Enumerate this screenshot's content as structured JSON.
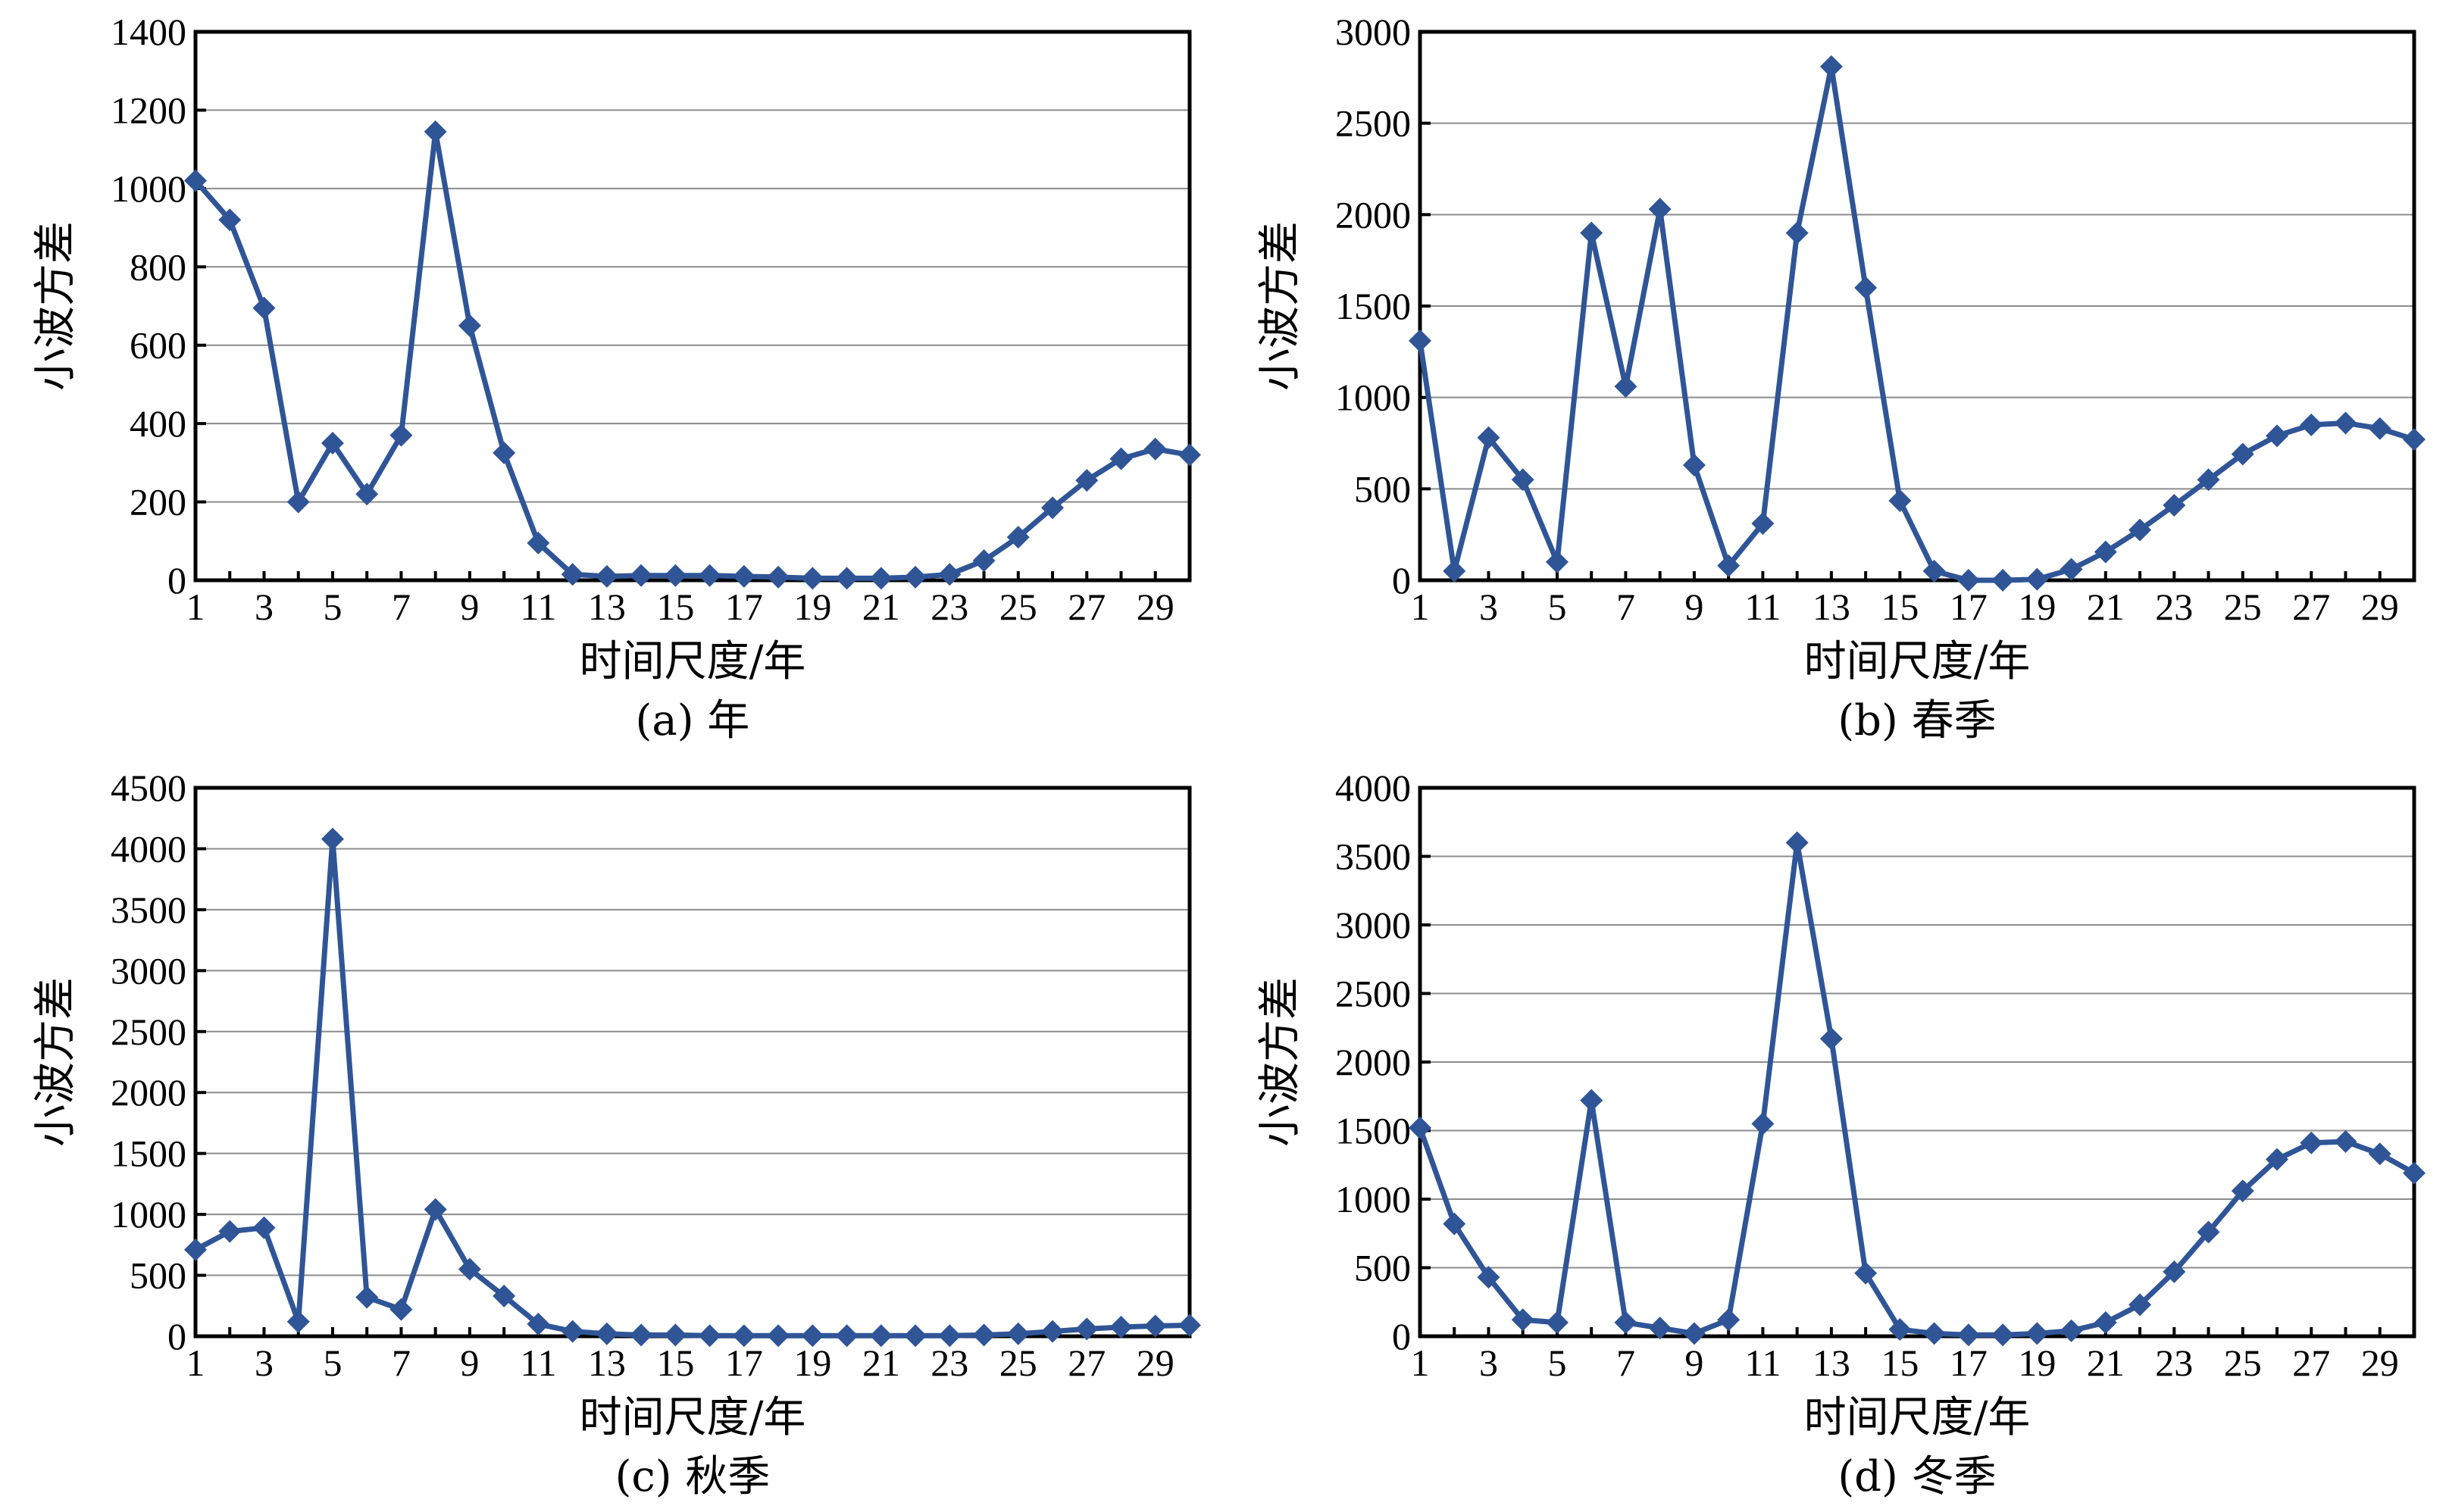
{
  "colors": {
    "series": "#2f5597",
    "grid": "#8c8c8c",
    "frame": "#000000"
  },
  "chart_data": [
    {
      "id": "a",
      "type": "line",
      "caption": "(a) 年",
      "xlabel": "时间尺度/年",
      "ylabel": "小波方差",
      "xlim": [
        1,
        30
      ],
      "ylim": [
        0,
        1400
      ],
      "yticks": [
        0,
        200,
        400,
        600,
        800,
        1000,
        1200,
        1400
      ],
      "xticks": [
        1,
        3,
        5,
        7,
        9,
        11,
        13,
        15,
        17,
        19,
        21,
        23,
        25,
        27,
        29
      ],
      "grid": "horizontal",
      "marker": "diamond",
      "x": [
        1,
        2,
        3,
        4,
        5,
        6,
        7,
        8,
        9,
        10,
        11,
        12,
        13,
        14,
        15,
        16,
        17,
        18,
        19,
        20,
        21,
        22,
        23,
        24,
        25,
        26,
        27,
        28,
        29,
        30
      ],
      "values": [
        1020,
        920,
        695,
        200,
        350,
        220,
        370,
        1145,
        650,
        325,
        95,
        15,
        10,
        12,
        12,
        12,
        10,
        8,
        5,
        5,
        5,
        8,
        15,
        50,
        110,
        185,
        255,
        310,
        335,
        320
      ]
    },
    {
      "id": "b",
      "type": "line",
      "caption": "(b) 春季",
      "xlabel": "时间尺度/年",
      "ylabel": "小波方差",
      "xlim": [
        1,
        30
      ],
      "ylim": [
        0,
        3000
      ],
      "yticks": [
        0,
        500,
        1000,
        1500,
        2000,
        2500,
        3000
      ],
      "xticks": [
        1,
        3,
        5,
        7,
        9,
        11,
        13,
        15,
        17,
        19,
        21,
        23,
        25,
        27,
        29
      ],
      "grid": "horizontal",
      "marker": "diamond",
      "x": [
        1,
        2,
        3,
        4,
        5,
        6,
        7,
        8,
        9,
        10,
        11,
        12,
        13,
        14,
        15,
        16,
        17,
        18,
        19,
        20,
        21,
        22,
        23,
        24,
        25,
        26,
        27,
        28,
        29,
        30
      ],
      "values": [
        1310,
        50,
        780,
        550,
        100,
        1900,
        1060,
        2030,
        630,
        80,
        310,
        1900,
        2810,
        1600,
        435,
        50,
        0,
        0,
        5,
        60,
        155,
        275,
        410,
        550,
        690,
        790,
        850,
        860,
        830,
        770
      ]
    },
    {
      "id": "c",
      "type": "line",
      "caption": "(c) 秋季",
      "xlabel": "时间尺度/年",
      "ylabel": "小波方差",
      "xlim": [
        1,
        30
      ],
      "ylim": [
        0,
        4500
      ],
      "yticks": [
        0,
        500,
        1000,
        1500,
        2000,
        2500,
        3000,
        3500,
        4000,
        4500
      ],
      "xticks": [
        1,
        3,
        5,
        7,
        9,
        11,
        13,
        15,
        17,
        19,
        21,
        23,
        25,
        27,
        29
      ],
      "grid": "horizontal",
      "marker": "diamond",
      "x": [
        1,
        2,
        3,
        4,
        5,
        6,
        7,
        8,
        9,
        10,
        11,
        12,
        13,
        14,
        15,
        16,
        17,
        18,
        19,
        20,
        21,
        22,
        23,
        24,
        25,
        26,
        27,
        28,
        29,
        30
      ],
      "values": [
        710,
        860,
        890,
        120,
        4080,
        320,
        220,
        1040,
        550,
        330,
        100,
        40,
        20,
        10,
        10,
        5,
        5,
        5,
        5,
        5,
        5,
        5,
        5,
        10,
        20,
        40,
        60,
        75,
        85,
        90
      ]
    },
    {
      "id": "d",
      "type": "line",
      "caption": "(d) 冬季",
      "xlabel": "时间尺度/年",
      "ylabel": "小波方差",
      "xlim": [
        1,
        30
      ],
      "ylim": [
        0,
        4000
      ],
      "yticks": [
        0,
        500,
        1000,
        1500,
        2000,
        2500,
        3000,
        3500,
        4000
      ],
      "xticks": [
        1,
        3,
        5,
        7,
        9,
        11,
        13,
        15,
        17,
        19,
        21,
        23,
        25,
        27,
        29
      ],
      "grid": "horizontal",
      "marker": "diamond",
      "x": [
        1,
        2,
        3,
        4,
        5,
        6,
        7,
        8,
        9,
        10,
        11,
        12,
        13,
        14,
        15,
        16,
        17,
        18,
        19,
        20,
        21,
        22,
        23,
        24,
        25,
        26,
        27,
        28,
        29,
        30
      ],
      "values": [
        1520,
        820,
        430,
        120,
        100,
        1720,
        100,
        60,
        20,
        120,
        1550,
        3600,
        2170,
        460,
        50,
        20,
        10,
        10,
        20,
        40,
        100,
        230,
        470,
        760,
        1060,
        1290,
        1410,
        1420,
        1330,
        1190
      ]
    }
  ]
}
